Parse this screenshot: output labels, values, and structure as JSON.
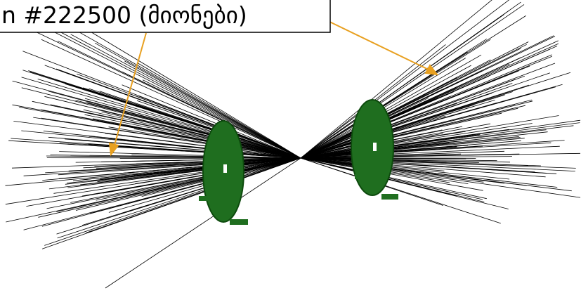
{
  "label": {
    "text": "n #222500 (მიონები)"
  }
}
